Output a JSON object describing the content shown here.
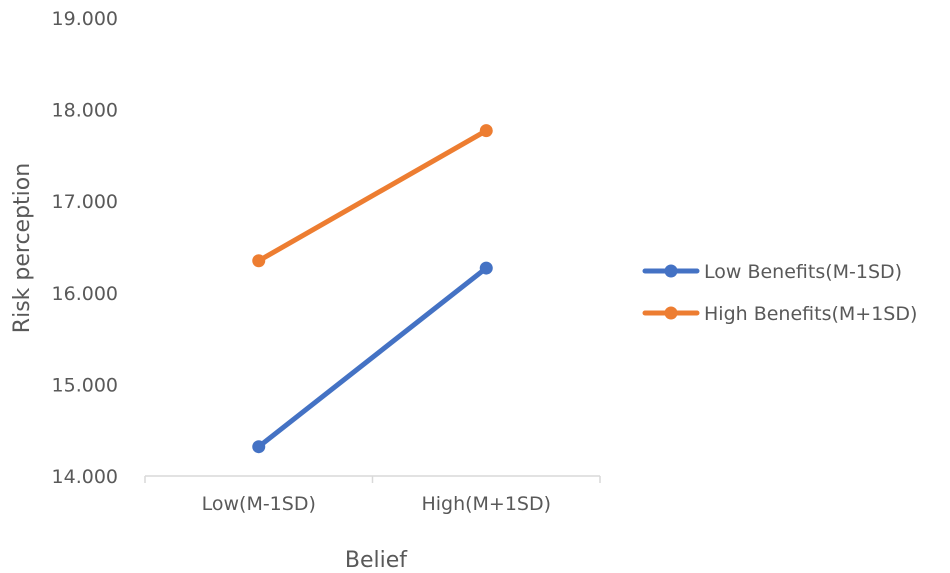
{
  "chart_data": {
    "type": "line",
    "categories": [
      "Low(M-1SD)",
      "High(M+1SD)"
    ],
    "series": [
      {
        "name": "Low Benefits(M-1SD)",
        "values": [
          14.32,
          16.27
        ],
        "color": "#4472C4"
      },
      {
        "name": "High Benefits(M+1SD)",
        "values": [
          16.35,
          17.77
        ],
        "color": "#ED7D31"
      }
    ],
    "xlabel": "Belief",
    "ylabel": "Risk perception",
    "ylim": [
      14.0,
      19.0
    ],
    "yticks": [
      "14.000",
      "15.000",
      "16.000",
      "17.000",
      "18.000",
      "19.000"
    ],
    "grid": false,
    "legend_position": "right"
  }
}
